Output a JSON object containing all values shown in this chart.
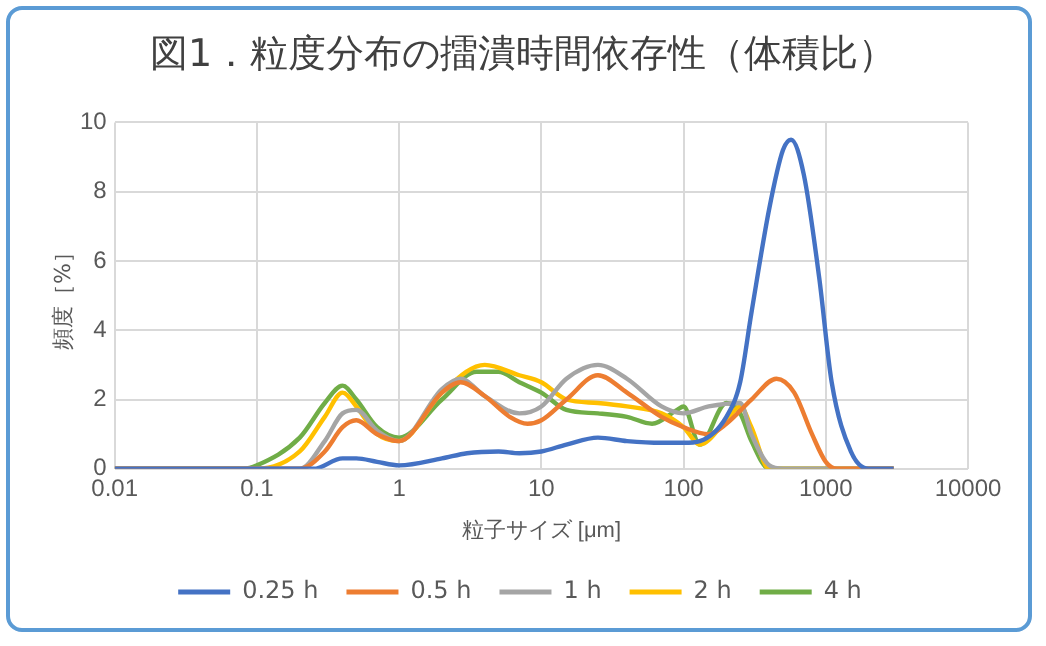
{
  "chart_data": {
    "type": "line",
    "title": "図1．粒度分布の擂潰時間依存性（体積比）",
    "xlabel": "粒子サイズ [μm]",
    "ylabel": "頻度［%］",
    "log": "x",
    "xlim": [
      0.01,
      10000
    ],
    "xticks": [
      0.01,
      0.1,
      1,
      10,
      100,
      1000,
      10000
    ],
    "ylim": [
      0,
      10
    ],
    "yticks": [
      0,
      2,
      4,
      6,
      8,
      10
    ],
    "grid": true,
    "legend": "bottom",
    "marker": "none",
    "line_style": "solid",
    "series": [
      {
        "name": "0.25 h",
        "color": "#4472c4",
        "x": [
          0.01,
          0.25,
          0.4,
          0.5,
          0.7,
          1,
          2,
          3,
          5,
          7,
          10,
          15,
          25,
          40,
          70,
          100,
          130,
          200,
          250,
          300,
          400,
          500,
          570,
          700,
          900,
          1100,
          1500,
          2000,
          3000
        ],
        "values": [
          0,
          0,
          0.3,
          0.3,
          0.2,
          0.1,
          0.3,
          0.45,
          0.5,
          0.45,
          0.5,
          0.7,
          0.9,
          0.8,
          0.75,
          0.75,
          0.8,
          1.5,
          2.5,
          4.5,
          7.5,
          9.2,
          9.5,
          8.5,
          5.5,
          2.5,
          0.5,
          0,
          0
        ]
      },
      {
        "name": "0.5 h",
        "color": "#ed7d31",
        "x": [
          0.01,
          0.2,
          0.3,
          0.4,
          0.5,
          0.7,
          1,
          2,
          2.7,
          4,
          6,
          8,
          10,
          15,
          25,
          40,
          70,
          100,
          150,
          200,
          300,
          450,
          600,
          800,
          1000,
          1200,
          3000
        ],
        "values": [
          0,
          0,
          0.5,
          1.2,
          1.4,
          1.0,
          0.8,
          2.2,
          2.5,
          2.1,
          1.5,
          1.3,
          1.4,
          2.0,
          2.7,
          2.2,
          1.5,
          1.2,
          1.0,
          1.3,
          2.0,
          2.6,
          2.2,
          1.0,
          0.2,
          0,
          0
        ]
      },
      {
        "name": "1 h",
        "color": "#a5a5a5",
        "x": [
          0.01,
          0.2,
          0.3,
          0.4,
          0.5,
          0.7,
          1,
          2,
          2.7,
          4,
          7,
          10,
          15,
          25,
          40,
          70,
          100,
          150,
          250,
          300,
          400,
          500,
          3000
        ],
        "values": [
          0,
          0,
          0.8,
          1.6,
          1.7,
          1.1,
          0.8,
          2.3,
          2.6,
          2.1,
          1.6,
          1.8,
          2.6,
          3.0,
          2.6,
          1.8,
          1.6,
          1.8,
          1.9,
          1.0,
          0.1,
          0,
          0
        ]
      },
      {
        "name": "2 h",
        "color": "#ffc000",
        "x": [
          0.01,
          0.1,
          0.2,
          0.3,
          0.4,
          0.5,
          0.7,
          1,
          2,
          4,
          7,
          10,
          15,
          25,
          40,
          70,
          100,
          130,
          200,
          250,
          300,
          400,
          3000
        ],
        "values": [
          0,
          0,
          0.5,
          1.5,
          2.2,
          1.8,
          1.0,
          0.8,
          2.2,
          3.0,
          2.7,
          2.5,
          2.0,
          1.9,
          1.8,
          1.6,
          1.2,
          0.7,
          1.4,
          1.8,
          1.2,
          0,
          0
        ]
      },
      {
        "name": "4 h",
        "color": "#70ad47",
        "x": [
          0.01,
          0.08,
          0.1,
          0.2,
          0.3,
          0.4,
          0.5,
          0.7,
          1,
          2,
          3.5,
          5,
          7,
          10,
          15,
          25,
          40,
          60,
          90,
          100,
          130,
          200,
          250,
          300,
          400,
          3000
        ],
        "values": [
          0,
          0,
          0.1,
          0.9,
          1.9,
          2.4,
          2.0,
          1.2,
          0.9,
          2.0,
          2.8,
          2.8,
          2.5,
          2.2,
          1.7,
          1.6,
          1.5,
          1.3,
          1.7,
          1.8,
          0.7,
          1.9,
          1.6,
          0.8,
          0,
          0
        ]
      }
    ]
  }
}
